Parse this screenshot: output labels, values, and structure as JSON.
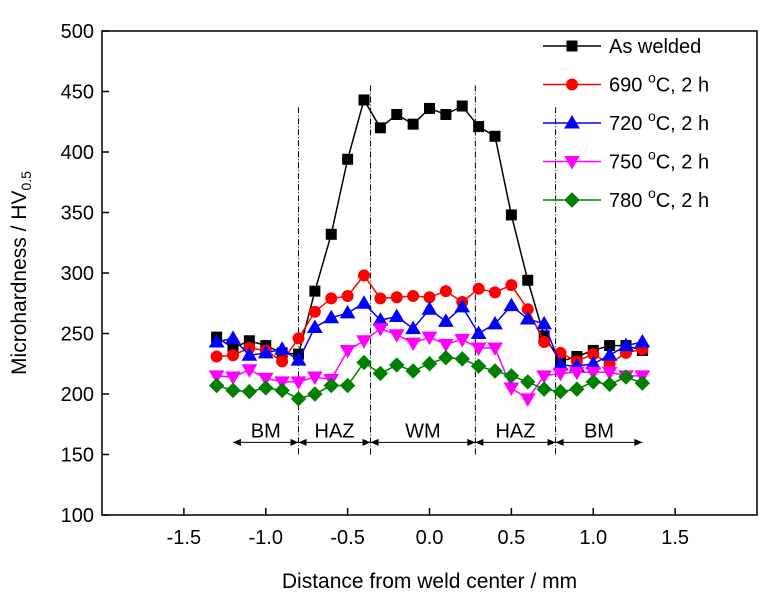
{
  "chart_data": {
    "type": "line",
    "title": "",
    "xlabel": "Distance from weld center / mm",
    "ylabel": {
      "main": "Microhardness / HV",
      "subscript": "0.5"
    },
    "xlim": [
      -2.0,
      2.0
    ],
    "ylim": [
      100,
      500
    ],
    "xticks": [
      -1.5,
      -1.0,
      -0.5,
      0.0,
      0.5,
      1.0,
      1.5
    ],
    "xtick_labels": [
      "-1.5",
      "-1.0",
      "-0.5",
      "0.0",
      "0.5",
      "1.0",
      "1.5"
    ],
    "yticks": [
      100,
      150,
      200,
      250,
      300,
      350,
      400,
      450,
      500
    ],
    "ytick_labels": [
      "100",
      "150",
      "200",
      "250",
      "300",
      "350",
      "400",
      "450",
      "500"
    ],
    "grid": false,
    "legend_position": "top-right",
    "x": [
      -1.3,
      -1.2,
      -1.1,
      -1.0,
      -0.9,
      -0.8,
      -0.7,
      -0.6,
      -0.5,
      -0.4,
      -0.3,
      -0.2,
      -0.1,
      0.0,
      0.1,
      0.2,
      0.3,
      0.4,
      0.5,
      0.6,
      0.7,
      0.8,
      0.9,
      1.0,
      1.1,
      1.2,
      1.3
    ],
    "series": [
      {
        "name": "As welded",
        "legend": {
          "pre": "As welded",
          "sup": "",
          "post": ""
        },
        "color": "#000000",
        "marker": "square",
        "values": [
          247,
          238,
          244,
          240,
          234,
          233,
          285,
          332,
          394,
          443,
          420,
          431,
          423,
          436,
          431,
          438,
          421,
          413,
          348,
          294,
          248,
          227,
          231,
          236,
          240,
          240,
          236
        ]
      },
      {
        "name": "690 °C, 2 h",
        "legend": {
          "pre": "690 ",
          "sup": "o",
          "post": "C, 2 h"
        },
        "color": "#ff0000",
        "marker": "circle",
        "values": [
          231,
          232,
          238,
          236,
          227,
          246,
          268,
          279,
          281,
          298,
          279,
          280,
          281,
          280,
          285,
          276,
          287,
          284,
          290,
          270,
          243,
          234,
          227,
          233,
          225,
          234,
          237
        ]
      },
      {
        "name": "720 °C, 2 h",
        "legend": {
          "pre": "720 ",
          "sup": "o",
          "post": "C, 2 h"
        },
        "color": "#0000ff",
        "marker": "triangle-up",
        "values": [
          243,
          246,
          232,
          234,
          237,
          228,
          255,
          263,
          267,
          275,
          261,
          264,
          254,
          270,
          260,
          272,
          250,
          258,
          273,
          262,
          258,
          224,
          223,
          225,
          232,
          240,
          243
        ]
      },
      {
        "name": "750 °C, 2 h",
        "legend": {
          "pre": "750 ",
          "sup": "o",
          "post": "C, 2 h"
        },
        "color": "#ff00ff",
        "marker": "triangle-down",
        "values": [
          215,
          214,
          220,
          213,
          210,
          210,
          214,
          212,
          236,
          244,
          254,
          249,
          242,
          247,
          241,
          245,
          238,
          238,
          205,
          196,
          215,
          217,
          218,
          218,
          218,
          215,
          215
        ]
      },
      {
        "name": "780 °C, 2 h",
        "legend": {
          "pre": "780 ",
          "sup": "o",
          "post": "C, 2 h"
        },
        "color": "#008000",
        "marker": "diamond",
        "values": [
          207,
          203,
          202,
          205,
          203,
          196,
          200,
          207,
          207,
          226,
          217,
          224,
          219,
          225,
          230,
          229,
          223,
          219,
          215,
          210,
          204,
          202,
          204,
          210,
          208,
          214,
          209
        ]
      }
    ],
    "region_boundaries_x": [
      -0.8,
      -0.36,
      0.28,
      0.77
    ],
    "regions": [
      {
        "label": "BM",
        "from": -1.2,
        "to": -0.8
      },
      {
        "label": "HAZ",
        "from": -0.8,
        "to": -0.36
      },
      {
        "label": "WM",
        "from": -0.36,
        "to": 0.28
      },
      {
        "label": "HAZ",
        "from": 0.28,
        "to": 0.77
      },
      {
        "label": "BM",
        "from": 0.77,
        "to": 1.3
      }
    ],
    "region_arrow_y": 160
  }
}
